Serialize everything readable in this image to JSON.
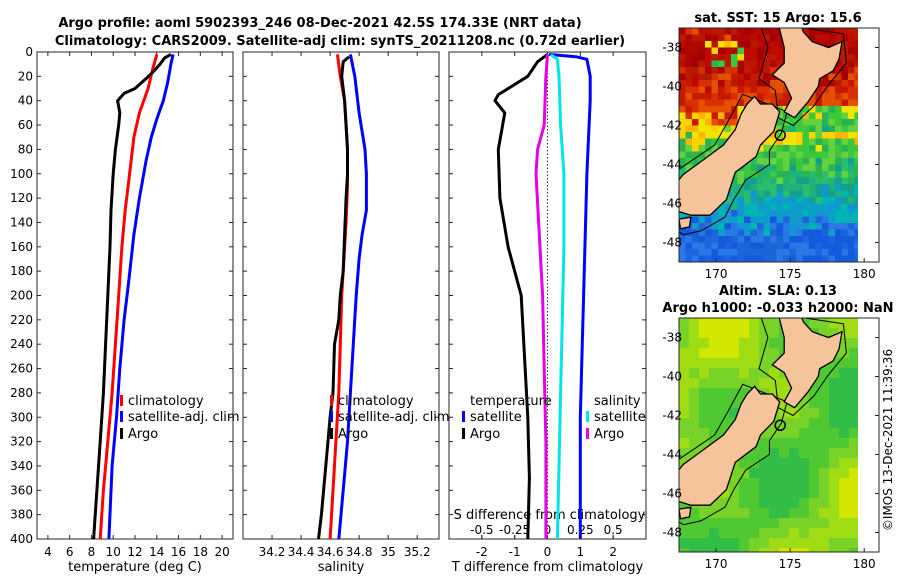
{
  "title_line1": "Argo profile: aoml 5902393_246 08-Dec-2021 42.5S 174.33E (NRT data)",
  "title_line2": "Climatology: CARS2009. Satellite-adj clim: synTS_20211208.nc (0.72d earlier)",
  "colors": {
    "climatology": "#ff0000",
    "satellite": "#0000ff",
    "argo": "#000000",
    "s_satellite": "#00e5e5",
    "s_argo": "#e500e5",
    "land": "#f5c49b"
  },
  "chart_data": [
    {
      "type": "line",
      "name": "temperature",
      "xlabel": "temperature (deg C)",
      "ylabel": "",
      "xlim": [
        3,
        21
      ],
      "ylim": [
        400,
        0
      ],
      "xticks": [
        4,
        6,
        8,
        10,
        12,
        14,
        16,
        18,
        20
      ],
      "yticks": [
        0,
        20,
        40,
        60,
        80,
        100,
        120,
        140,
        160,
        180,
        200,
        220,
        240,
        260,
        280,
        300,
        320,
        340,
        360,
        380,
        400
      ],
      "legend_position": "bottom-right",
      "series": [
        {
          "name": "climatology",
          "color_key": "climatology",
          "points": [
            [
              14.0,
              2
            ],
            [
              13.6,
              15
            ],
            [
              13.2,
              30
            ],
            [
              12.4,
              50
            ],
            [
              11.9,
              70
            ],
            [
              11.5,
              100
            ],
            [
              11.1,
              130
            ],
            [
              10.8,
              160
            ],
            [
              10.5,
              200
            ],
            [
              10.2,
              240
            ],
            [
              9.9,
              280
            ],
            [
              9.5,
              320
            ],
            [
              9.1,
              360
            ],
            [
              8.8,
              400
            ]
          ]
        },
        {
          "name": "satellite-adj. clim",
          "color_key": "satellite",
          "points": [
            [
              15.5,
              2
            ],
            [
              15.3,
              10
            ],
            [
              15.0,
              25
            ],
            [
              14.6,
              40
            ],
            [
              14.0,
              55
            ],
            [
              13.5,
              70
            ],
            [
              13.0,
              90
            ],
            [
              12.4,
              120
            ],
            [
              11.9,
              150
            ],
            [
              11.4,
              190
            ],
            [
              11.0,
              220
            ],
            [
              10.6,
              260
            ],
            [
              10.3,
              300
            ],
            [
              9.9,
              340
            ],
            [
              9.6,
              400
            ]
          ]
        },
        {
          "name": "Argo",
          "color_key": "argo",
          "points": [
            [
              15.3,
              2
            ],
            [
              14.7,
              5
            ],
            [
              14.3,
              10
            ],
            [
              13.8,
              15
            ],
            [
              13.0,
              22
            ],
            [
              12.0,
              30
            ],
            [
              11.0,
              34
            ],
            [
              10.4,
              40
            ],
            [
              10.6,
              50
            ],
            [
              10.5,
              60
            ],
            [
              10.2,
              80
            ],
            [
              10.0,
              100
            ],
            [
              9.8,
              130
            ],
            [
              9.7,
              160
            ],
            [
              9.5,
              200
            ],
            [
              9.3,
              240
            ],
            [
              9.1,
              280
            ],
            [
              8.8,
              320
            ],
            [
              8.5,
              360
            ],
            [
              8.2,
              400
            ]
          ]
        }
      ]
    },
    {
      "type": "line",
      "name": "salinity",
      "xlabel": "salinity",
      "ylabel": "",
      "xlim": [
        34.0,
        35.35
      ],
      "ylim": [
        400,
        0
      ],
      "xticks": [
        34.2,
        34.4,
        34.6,
        34.8,
        35.0,
        35.2
      ],
      "xtick_labels": [
        "34.2",
        "34.4",
        "34.6",
        "34.8",
        "35",
        "35.2"
      ],
      "legend_position": "bottom-right",
      "series": [
        {
          "name": "climatology",
          "color_key": "climatology",
          "points": [
            [
              34.65,
              2
            ],
            [
              34.67,
              20
            ],
            [
              34.7,
              40
            ],
            [
              34.72,
              80
            ],
            [
              34.72,
              110
            ],
            [
              34.71,
              140
            ],
            [
              34.7,
              160
            ],
            [
              34.69,
              180
            ],
            [
              34.68,
              200
            ],
            [
              34.67,
              240
            ],
            [
              34.66,
              280
            ],
            [
              34.64,
              320
            ],
            [
              34.62,
              360
            ],
            [
              34.6,
              400
            ]
          ]
        },
        {
          "name": "satellite-adj. clim",
          "color_key": "satellite",
          "points": [
            [
              34.74,
              2
            ],
            [
              34.77,
              20
            ],
            [
              34.8,
              50
            ],
            [
              34.84,
              80
            ],
            [
              34.85,
              100
            ],
            [
              34.85,
              130
            ],
            [
              34.82,
              150
            ],
            [
              34.8,
              170
            ],
            [
              34.78,
              200
            ],
            [
              34.76,
              240
            ],
            [
              34.74,
              280
            ],
            [
              34.72,
              320
            ],
            [
              34.69,
              360
            ],
            [
              34.66,
              400
            ]
          ]
        },
        {
          "name": "Argo",
          "color_key": "argo",
          "points": [
            [
              34.73,
              4
            ],
            [
              34.69,
              8
            ],
            [
              34.68,
              20
            ],
            [
              34.7,
              40
            ],
            [
              34.71,
              60
            ],
            [
              34.72,
              80
            ],
            [
              34.72,
              100
            ],
            [
              34.71,
              120
            ],
            [
              34.7,
              150
            ],
            [
              34.69,
              180
            ],
            [
              34.67,
              200
            ],
            [
              34.66,
              220
            ],
            [
              34.63,
              240
            ],
            [
              34.62,
              280
            ],
            [
              34.6,
              300
            ],
            [
              34.57,
              340
            ],
            [
              34.54,
              380
            ],
            [
              34.52,
              400
            ]
          ]
        }
      ]
    },
    {
      "type": "line",
      "name": "differences",
      "xlabel": "T difference from climatology",
      "top_axis_label": "S difference from climatology",
      "xlim": [
        -3,
        3
      ],
      "ylim": [
        400,
        0
      ],
      "xticks": [
        -2,
        -1,
        0,
        1,
        2
      ],
      "xtick_labels": [
        "-2",
        "-1",
        "0",
        "1",
        "2"
      ],
      "top_ticks": [
        -0.5,
        -0.25,
        0,
        0.25,
        0.5
      ],
      "top_tick_labels": [
        "-0.5",
        "-0.25",
        "0",
        "0.25",
        "0.5"
      ],
      "top_scale": 4,
      "legend_left_title": "temperature",
      "legend_right_title": "salinity",
      "legend_position": "bottom",
      "series": [
        {
          "name": "satellite",
          "group": "temperature",
          "color_key": "satellite",
          "points": [
            [
              0.05,
              2
            ],
            [
              0.9,
              4
            ],
            [
              1.2,
              6
            ],
            [
              1.3,
              20
            ],
            [
              1.3,
              40
            ],
            [
              1.2,
              100
            ],
            [
              1.1,
              200
            ],
            [
              1.0,
              300
            ],
            [
              1.0,
              400
            ]
          ]
        },
        {
          "name": "Argo",
          "group": "temperature",
          "color_key": "argo",
          "points": [
            [
              0.0,
              2
            ],
            [
              -0.3,
              8
            ],
            [
              -0.6,
              20
            ],
            [
              -1.5,
              35
            ],
            [
              -1.6,
              40
            ],
            [
              -1.3,
              50
            ],
            [
              -1.5,
              80
            ],
            [
              -1.45,
              120
            ],
            [
              -1.2,
              160
            ],
            [
              -0.8,
              200
            ],
            [
              -0.7,
              250
            ],
            [
              -0.6,
              300
            ],
            [
              -0.55,
              350
            ],
            [
              -0.6,
              400
            ]
          ]
        },
        {
          "name": "satellite",
          "group": "salinity",
          "color_key": "s_satellite",
          "points": [
            [
              0.1,
              2
            ],
            [
              0.3,
              6
            ],
            [
              0.35,
              20
            ],
            [
              0.4,
              60
            ],
            [
              0.5,
              100
            ],
            [
              0.5,
              160
            ],
            [
              0.45,
              220
            ],
            [
              0.4,
              280
            ],
            [
              0.35,
              340
            ],
            [
              0.3,
              400
            ]
          ]
        },
        {
          "name": "Argo",
          "group": "salinity",
          "color_key": "s_argo",
          "points": [
            [
              0.0,
              2
            ],
            [
              -0.05,
              20
            ],
            [
              -0.1,
              60
            ],
            [
              -0.3,
              80
            ],
            [
              -0.35,
              100
            ],
            [
              -0.25,
              150
            ],
            [
              -0.15,
              200
            ],
            [
              -0.1,
              260
            ],
            [
              -0.05,
              320
            ],
            [
              -0.05,
              400
            ]
          ]
        }
      ]
    },
    {
      "type": "heatmap",
      "name": "sst_map",
      "title": "sat. SST: 15 Argo: 15.6",
      "xticks": [
        170,
        175,
        180
      ],
      "yticks": [
        -38,
        -40,
        -42,
        -44,
        -46,
        -48
      ],
      "xlim": [
        167.5,
        181
      ],
      "ylim": [
        -49,
        -37
      ]
    },
    {
      "type": "heatmap",
      "name": "sla_map",
      "title_line1": "Altim. SLA: 0.13",
      "title_line2": "Argo h1000: -0.033 h2000: NaN",
      "xticks": [
        170,
        175,
        180
      ],
      "yticks": [
        -38,
        -40,
        -42,
        -44,
        -46,
        -48
      ],
      "xlim": [
        167.5,
        181
      ],
      "ylim": [
        -49,
        -37
      ]
    }
  ],
  "legends": {
    "temperature": [
      "climatology",
      "satellite-adj. clim",
      "Argo"
    ],
    "salinity": [
      "climatology",
      "satellite-adj. clim",
      "Argo"
    ],
    "diff_temperature_title": "temperature",
    "diff_salinity_title": "salinity",
    "diff_temperature": [
      "satellite",
      "Argo"
    ],
    "diff_salinity": [
      "satellite",
      "Argo"
    ]
  },
  "watermark": "©IMOS 13-Dec-2021 11:39:36"
}
